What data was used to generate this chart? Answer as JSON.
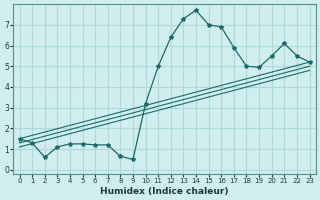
{
  "xlabel": "Humidex (Indice chaleur)",
  "ylabel": "",
  "background_color": "#d0eeee",
  "grid_color": "#b0d8d8",
  "line_color": "#1a6b6b",
  "x_data": [
    0,
    1,
    2,
    3,
    4,
    5,
    6,
    7,
    8,
    9,
    10,
    11,
    12,
    13,
    14,
    15,
    16,
    17,
    18,
    19,
    20,
    21,
    22,
    23
  ],
  "y_data": [
    1.5,
    1.3,
    0.6,
    1.1,
    1.25,
    1.25,
    1.2,
    1.2,
    0.65,
    0.5,
    3.2,
    5.0,
    6.4,
    7.3,
    7.7,
    7.0,
    6.9,
    5.9,
    5.0,
    4.95,
    5.5,
    6.1,
    5.5,
    5.2
  ],
  "reg_lines": [
    {
      "x": [
        0,
        23
      ],
      "y": [
        1.5,
        5.2
      ]
    },
    {
      "x": [
        0,
        23
      ],
      "y": [
        1.3,
        5.0
      ]
    },
    {
      "x": [
        0,
        23
      ],
      "y": [
        1.1,
        4.8
      ]
    }
  ],
  "xlim": [
    -0.5,
    23.5
  ],
  "ylim": [
    -0.2,
    8.0
  ],
  "xticks": [
    0,
    1,
    2,
    3,
    4,
    5,
    6,
    7,
    8,
    9,
    10,
    11,
    12,
    13,
    14,
    15,
    16,
    17,
    18,
    19,
    20,
    21,
    22,
    23
  ],
  "yticks": [
    0,
    1,
    2,
    3,
    4,
    5,
    6,
    7
  ]
}
